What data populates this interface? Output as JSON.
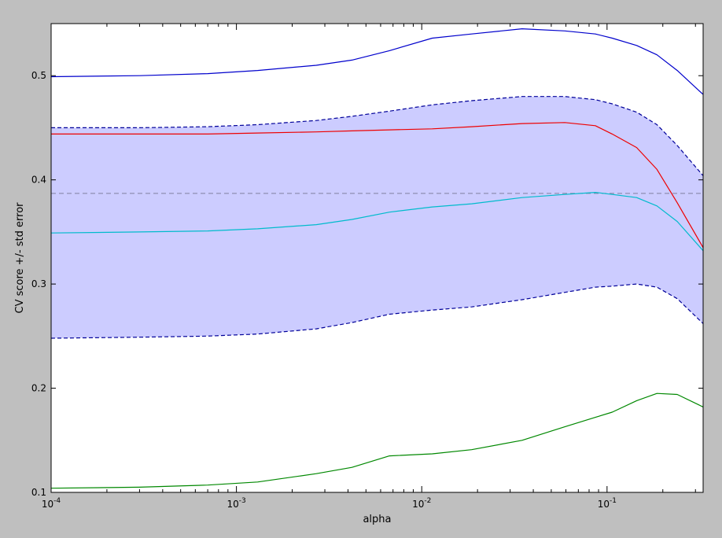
{
  "chart_data": {
    "type": "line",
    "title": "",
    "xlabel": "alpha",
    "ylabel": "CV score +/- std error",
    "xscale": "log",
    "xlim": [
      0.0001,
      0.33
    ],
    "ylim": [
      0.1,
      0.55
    ],
    "grid": false,
    "legend": "none",
    "x_ticks": [
      {
        "value": 0.0001,
        "base": "10",
        "exp": "-4"
      },
      {
        "value": 0.001,
        "base": "10",
        "exp": "-3"
      },
      {
        "value": 0.01,
        "base": "10",
        "exp": "-2"
      },
      {
        "value": 0.1,
        "base": "10",
        "exp": "-1"
      }
    ],
    "y_ticks": [
      {
        "value": 0.1,
        "label": "0.1"
      },
      {
        "value": 0.2,
        "label": "0.2"
      },
      {
        "value": 0.3,
        "label": "0.3"
      },
      {
        "value": 0.4,
        "label": "0.4"
      },
      {
        "value": 0.5,
        "label": "0.5"
      }
    ],
    "reference_line": {
      "y": 0.387,
      "color": "#7f7f9f"
    },
    "band": {
      "color": "#ccccff"
    },
    "series": [
      {
        "role": "fold",
        "color": "#0000cc",
        "style": "solid",
        "points": [
          [
            0.0001,
            0.499
          ],
          [
            0.0003,
            0.5
          ],
          [
            0.0007,
            0.502
          ],
          [
            0.0013,
            0.505
          ],
          [
            0.0027,
            0.51
          ],
          [
            0.0042,
            0.515
          ],
          [
            0.0067,
            0.524
          ],
          [
            0.0114,
            0.536
          ],
          [
            0.0186,
            0.54
          ],
          [
            0.0348,
            0.545
          ],
          [
            0.0592,
            0.543
          ],
          [
            0.0865,
            0.54
          ],
          [
            0.1066,
            0.536
          ],
          [
            0.1445,
            0.529
          ],
          [
            0.1859,
            0.52
          ],
          [
            0.2392,
            0.505
          ],
          [
            0.33,
            0.482
          ]
        ]
      },
      {
        "role": "mean+std",
        "color": "#000099",
        "style": "dashed",
        "points": [
          [
            0.0001,
            0.45
          ],
          [
            0.0003,
            0.45
          ],
          [
            0.0007,
            0.451
          ],
          [
            0.0013,
            0.453
          ],
          [
            0.0027,
            0.457
          ],
          [
            0.0042,
            0.461
          ],
          [
            0.0067,
            0.466
          ],
          [
            0.0114,
            0.472
          ],
          [
            0.0186,
            0.476
          ],
          [
            0.0348,
            0.48
          ],
          [
            0.0592,
            0.48
          ],
          [
            0.0865,
            0.477
          ],
          [
            0.1066,
            0.473
          ],
          [
            0.1445,
            0.465
          ],
          [
            0.1859,
            0.453
          ],
          [
            0.2392,
            0.433
          ],
          [
            0.33,
            0.404
          ]
        ]
      },
      {
        "role": "mean",
        "color": "#ee0000",
        "style": "solid",
        "points": [
          [
            0.0001,
            0.444
          ],
          [
            0.0003,
            0.444
          ],
          [
            0.0007,
            0.444
          ],
          [
            0.0013,
            0.445
          ],
          [
            0.0027,
            0.446
          ],
          [
            0.0042,
            0.447
          ],
          [
            0.0067,
            0.448
          ],
          [
            0.0114,
            0.449
          ],
          [
            0.0186,
            0.451
          ],
          [
            0.0348,
            0.454
          ],
          [
            0.0592,
            0.455
          ],
          [
            0.0865,
            0.452
          ],
          [
            0.1066,
            0.444
          ],
          [
            0.1445,
            0.431
          ],
          [
            0.1859,
            0.41
          ],
          [
            0.2392,
            0.378
          ],
          [
            0.33,
            0.335
          ]
        ]
      },
      {
        "role": "fold",
        "color": "#00bbcc",
        "style": "solid",
        "points": [
          [
            0.0001,
            0.349
          ],
          [
            0.0003,
            0.35
          ],
          [
            0.0007,
            0.351
          ],
          [
            0.0013,
            0.353
          ],
          [
            0.0027,
            0.357
          ],
          [
            0.0042,
            0.362
          ],
          [
            0.0067,
            0.369
          ],
          [
            0.0114,
            0.374
          ],
          [
            0.0186,
            0.377
          ],
          [
            0.0348,
            0.383
          ],
          [
            0.0592,
            0.386
          ],
          [
            0.0865,
            0.388
          ],
          [
            0.1066,
            0.386
          ],
          [
            0.1445,
            0.383
          ],
          [
            0.1859,
            0.375
          ],
          [
            0.2392,
            0.36
          ],
          [
            0.33,
            0.332
          ]
        ]
      },
      {
        "role": "mean-std",
        "color": "#000099",
        "style": "dashed",
        "points": [
          [
            0.0001,
            0.248
          ],
          [
            0.0003,
            0.249
          ],
          [
            0.0007,
            0.25
          ],
          [
            0.0013,
            0.252
          ],
          [
            0.0027,
            0.257
          ],
          [
            0.0042,
            0.263
          ],
          [
            0.0067,
            0.271
          ],
          [
            0.0114,
            0.275
          ],
          [
            0.0186,
            0.278
          ],
          [
            0.0348,
            0.285
          ],
          [
            0.0592,
            0.292
          ],
          [
            0.0865,
            0.297
          ],
          [
            0.1066,
            0.298
          ],
          [
            0.1445,
            0.3
          ],
          [
            0.1859,
            0.297
          ],
          [
            0.2392,
            0.286
          ],
          [
            0.33,
            0.262
          ]
        ]
      },
      {
        "role": "fold",
        "color": "#008800",
        "style": "solid",
        "points": [
          [
            0.0001,
            0.104
          ],
          [
            0.0003,
            0.105
          ],
          [
            0.0007,
            0.107
          ],
          [
            0.0013,
            0.11
          ],
          [
            0.0027,
            0.118
          ],
          [
            0.0042,
            0.124
          ],
          [
            0.0067,
            0.135
          ],
          [
            0.0114,
            0.137
          ],
          [
            0.0186,
            0.141
          ],
          [
            0.0348,
            0.15
          ],
          [
            0.0592,
            0.163
          ],
          [
            0.0865,
            0.172
          ],
          [
            0.1066,
            0.177
          ],
          [
            0.1445,
            0.188
          ],
          [
            0.1859,
            0.195
          ],
          [
            0.2392,
            0.194
          ],
          [
            0.33,
            0.182
          ]
        ]
      }
    ]
  }
}
